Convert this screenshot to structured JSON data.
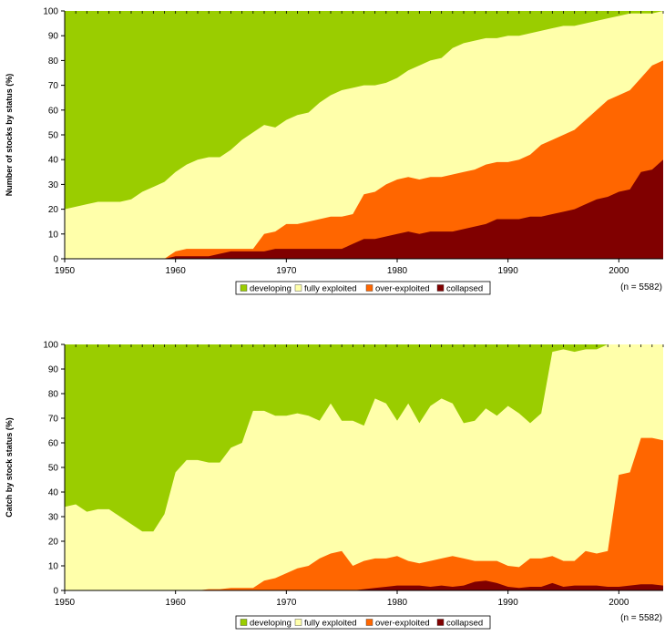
{
  "colors": {
    "developing": "#9ACD00",
    "fully_exploited": "#FFFFAA",
    "over_exploited": "#FF6600",
    "collapsed": "#800000"
  },
  "chart_data": [
    {
      "type": "area",
      "stacked": true,
      "ylabel": "Number of stocks by status (%)",
      "xlim": [
        1950,
        2004
      ],
      "ylim": [
        0,
        100
      ],
      "xticks": [
        1950,
        1960,
        1970,
        1980,
        1990,
        2000
      ],
      "yticks": [
        0,
        10,
        20,
        30,
        40,
        50,
        60,
        70,
        80,
        90,
        100
      ],
      "note": "(n = 5582)",
      "legend_position": "bottom-center",
      "legend": [
        "developing",
        "fully exploited",
        "over-exploited",
        "collapsed"
      ],
      "x": [
        1950,
        1951,
        1952,
        1953,
        1954,
        1955,
        1956,
        1957,
        1958,
        1959,
        1960,
        1961,
        1962,
        1963,
        1964,
        1965,
        1966,
        1967,
        1968,
        1969,
        1970,
        1971,
        1972,
        1973,
        1974,
        1975,
        1976,
        1977,
        1978,
        1979,
        1980,
        1981,
        1982,
        1983,
        1984,
        1985,
        1986,
        1987,
        1988,
        1989,
        1990,
        1991,
        1992,
        1993,
        1994,
        1995,
        1996,
        1997,
        1998,
        1999,
        2000,
        2001,
        2002,
        2003,
        2004
      ],
      "series": [
        {
          "name": "collapsed",
          "values": [
            0,
            0,
            0,
            0,
            0,
            0,
            0,
            0,
            0,
            0,
            1,
            1,
            1,
            1,
            2,
            3,
            3,
            3,
            3,
            4,
            4,
            4,
            4,
            4,
            4,
            4,
            6,
            8,
            8,
            9,
            10,
            11,
            10,
            11,
            11,
            11,
            12,
            13,
            14,
            16,
            16,
            16,
            17,
            17,
            18,
            19,
            20,
            22,
            24,
            25,
            27,
            28,
            35,
            36,
            40
          ]
        },
        {
          "name": "over-exploited",
          "values": [
            0,
            0,
            0,
            0,
            0,
            0,
            0,
            0,
            0,
            0,
            3,
            4,
            4,
            4,
            4,
            4,
            4,
            4,
            10,
            11,
            14,
            14,
            15,
            16,
            17,
            17,
            18,
            26,
            27,
            30,
            32,
            33,
            32,
            33,
            33,
            34,
            35,
            36,
            38,
            39,
            39,
            40,
            42,
            46,
            48,
            50,
            52,
            56,
            60,
            64,
            66,
            68,
            73,
            78,
            80
          ]
        },
        {
          "name": "fully exploited",
          "values": [
            20,
            21,
            22,
            23,
            23,
            23,
            24,
            27,
            29,
            31,
            35,
            38,
            40,
            41,
            41,
            44,
            48,
            51,
            54,
            53,
            56,
            58,
            59,
            63,
            66,
            68,
            69,
            70,
            70,
            71,
            73,
            76,
            78,
            80,
            81,
            85,
            87,
            88,
            89,
            89,
            90,
            90,
            91,
            92,
            93,
            94,
            94,
            95,
            96,
            97,
            98,
            99,
            99,
            99,
            100
          ]
        },
        {
          "name": "developing",
          "values": [
            100,
            100,
            100,
            100,
            100,
            100,
            100,
            100,
            100,
            100,
            100,
            100,
            100,
            100,
            100,
            100,
            100,
            100,
            100,
            100,
            100,
            100,
            100,
            100,
            100,
            100,
            100,
            100,
            100,
            100,
            100,
            100,
            100,
            100,
            100,
            100,
            100,
            100,
            100,
            100,
            100,
            100,
            100,
            100,
            100,
            100,
            100,
            100,
            100,
            100,
            100,
            100,
            100,
            100,
            100
          ]
        }
      ]
    },
    {
      "type": "area",
      "stacked": true,
      "ylabel": "Catch by stock status (%)",
      "xlim": [
        1950,
        2004
      ],
      "ylim": [
        0,
        100
      ],
      "xticks": [
        1950,
        1960,
        1970,
        1980,
        1990,
        2000
      ],
      "yticks": [
        0,
        10,
        20,
        30,
        40,
        50,
        60,
        70,
        80,
        90,
        100
      ],
      "note": "(n = 5582)",
      "legend_position": "bottom-center",
      "legend": [
        "developing",
        "fully exploited",
        "over-exploited",
        "collapsed"
      ],
      "x": [
        1950,
        1951,
        1952,
        1953,
        1954,
        1955,
        1956,
        1957,
        1958,
        1959,
        1960,
        1961,
        1962,
        1963,
        1964,
        1965,
        1966,
        1967,
        1968,
        1969,
        1970,
        1971,
        1972,
        1973,
        1974,
        1975,
        1976,
        1977,
        1978,
        1979,
        1980,
        1981,
        1982,
        1983,
        1984,
        1985,
        1986,
        1987,
        1988,
        1989,
        1990,
        1991,
        1992,
        1993,
        1994,
        1995,
        1996,
        1997,
        1998,
        1999,
        2000,
        2001,
        2002,
        2003,
        2004
      ],
      "series": [
        {
          "name": "collapsed",
          "values": [
            0,
            0,
            0,
            0,
            0,
            0,
            0,
            0,
            0,
            0,
            0,
            0,
            0,
            0,
            0,
            0,
            0,
            0,
            0,
            0,
            0,
            0,
            0,
            0,
            0,
            0,
            0,
            0.5,
            1,
            1.5,
            2,
            2,
            2,
            1.5,
            2,
            1.5,
            2,
            3.5,
            4,
            3,
            1.5,
            1,
            1.5,
            1.5,
            3,
            1.5,
            2,
            2,
            2,
            1.5,
            1.5,
            2,
            2.5,
            2.5,
            2
          ]
        },
        {
          "name": "over-exploited",
          "values": [
            0,
            0,
            0,
            0,
            0,
            0,
            0,
            0,
            0,
            0,
            0,
            0,
            0,
            0.5,
            0.5,
            1,
            1,
            1,
            4,
            5,
            7,
            9,
            10,
            13,
            15,
            16,
            10,
            12,
            13,
            13,
            14,
            12,
            11,
            12,
            13,
            14,
            13,
            12,
            12,
            12,
            10,
            9.5,
            13,
            13,
            14,
            12,
            12,
            16,
            15,
            16,
            47,
            48,
            62,
            62,
            61
          ]
        },
        {
          "name": "fully exploited",
          "values": [
            34,
            35,
            32,
            33,
            33,
            30,
            27,
            24,
            24,
            31,
            48,
            53,
            53,
            52,
            52,
            58,
            60,
            73,
            73,
            71,
            71,
            72,
            71,
            69,
            76,
            69,
            69,
            67,
            78,
            76,
            69,
            76,
            68,
            75,
            78,
            76,
            68,
            69,
            74,
            71,
            75,
            72,
            68,
            72,
            97,
            98,
            97,
            98,
            98,
            100,
            100,
            100,
            100,
            100,
            100
          ]
        },
        {
          "name": "developing",
          "values": [
            100,
            100,
            100,
            100,
            100,
            100,
            100,
            100,
            100,
            100,
            100,
            100,
            100,
            100,
            100,
            100,
            100,
            100,
            100,
            100,
            100,
            100,
            100,
            100,
            100,
            100,
            100,
            100,
            100,
            100,
            100,
            100,
            100,
            100,
            100,
            100,
            100,
            100,
            100,
            100,
            100,
            100,
            100,
            100,
            100,
            100,
            100,
            100,
            100,
            100,
            100,
            100,
            100,
            100,
            100
          ]
        }
      ]
    }
  ]
}
